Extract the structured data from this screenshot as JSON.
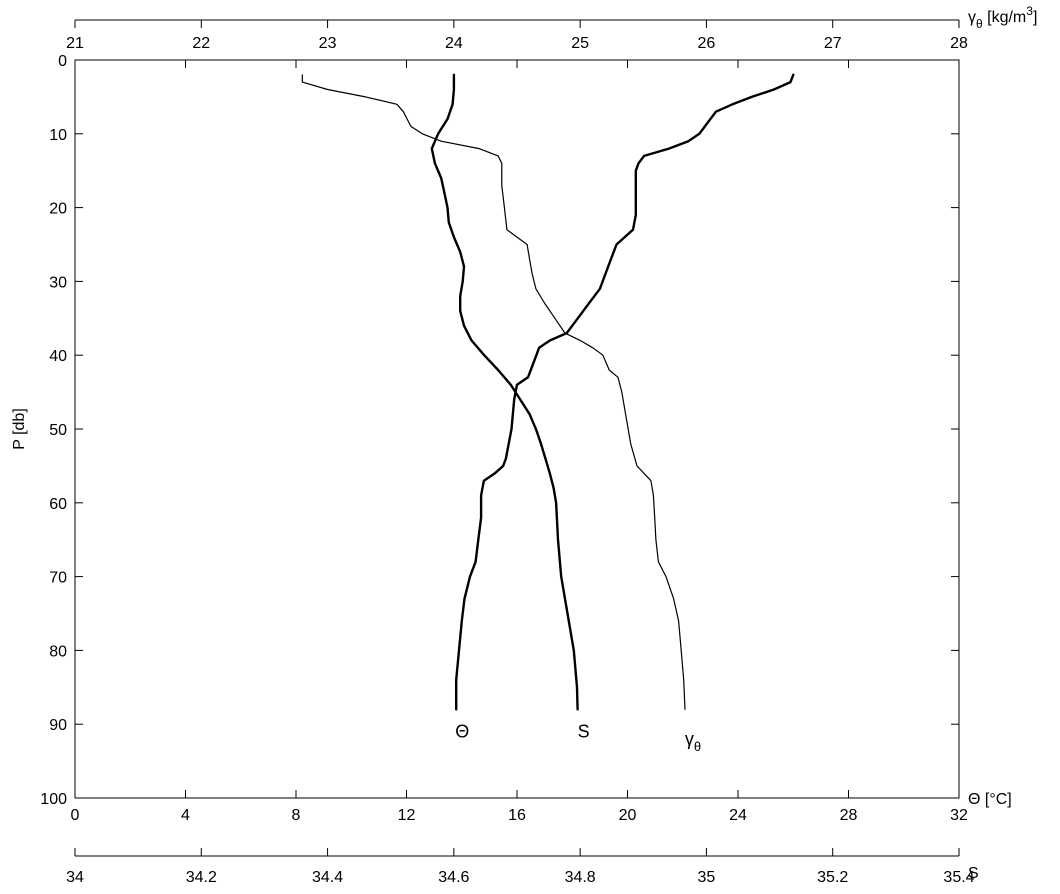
{
  "chart_data": {
    "type": "line",
    "title": "",
    "ylabel": "P [db]",
    "ylim": [
      0,
      100
    ],
    "y_inverted": true,
    "yticks": [
      0,
      10,
      20,
      30,
      40,
      50,
      60,
      70,
      80,
      90,
      100
    ],
    "axes": {
      "theta": {
        "label": "Θ [°C]",
        "range": [
          0,
          32
        ],
        "ticks": [
          0,
          4,
          8,
          12,
          16,
          20,
          24,
          28,
          32
        ],
        "position": "bottom"
      },
      "salinity": {
        "label": "S",
        "range": [
          34,
          35.4
        ],
        "ticks": [
          "34",
          "34.2",
          "34.4",
          "34.6",
          "34.8",
          "35",
          "35.2",
          "35.4"
        ],
        "position": "bottom-offset"
      },
      "gamma": {
        "label": "γθ [kg/m³]",
        "range": [
          21,
          28
        ],
        "ticks": [
          21,
          22,
          23,
          24,
          25,
          26,
          27,
          28
        ],
        "position": "top-offset"
      }
    },
    "series": [
      {
        "name": "Θ",
        "axis": "theta",
        "line_width": 2.4,
        "points": [
          [
            2,
            26.0
          ],
          [
            3,
            25.9
          ],
          [
            4,
            25.3
          ],
          [
            5,
            24.5
          ],
          [
            6,
            23.8
          ],
          [
            7,
            23.2
          ],
          [
            8,
            23.0
          ],
          [
            9,
            22.8
          ],
          [
            10,
            22.6
          ],
          [
            11,
            22.2
          ],
          [
            12,
            21.5
          ],
          [
            13,
            20.6
          ],
          [
            14,
            20.4
          ],
          [
            15,
            20.3
          ],
          [
            17,
            20.3
          ],
          [
            19,
            20.3
          ],
          [
            21,
            20.3
          ],
          [
            23,
            20.2
          ],
          [
            24,
            19.9
          ],
          [
            25,
            19.6
          ],
          [
            27,
            19.4
          ],
          [
            29,
            19.2
          ],
          [
            31,
            19.0
          ],
          [
            33,
            18.6
          ],
          [
            35,
            18.2
          ],
          [
            37,
            17.8
          ],
          [
            38,
            17.2
          ],
          [
            39,
            16.8
          ],
          [
            41,
            16.6
          ],
          [
            43,
            16.4
          ],
          [
            44,
            16.0
          ],
          [
            46,
            15.9
          ],
          [
            50,
            15.8
          ],
          [
            54,
            15.6
          ],
          [
            55,
            15.5
          ],
          [
            56,
            15.2
          ],
          [
            57,
            14.8
          ],
          [
            59,
            14.7
          ],
          [
            62,
            14.7
          ],
          [
            65,
            14.6
          ],
          [
            68,
            14.5
          ],
          [
            70,
            14.3
          ],
          [
            73,
            14.1
          ],
          [
            76,
            14.0
          ],
          [
            80,
            13.9
          ],
          [
            84,
            13.8
          ],
          [
            88,
            13.8
          ]
        ]
      },
      {
        "name": "S",
        "axis": "salinity",
        "line_width": 2.4,
        "points": [
          [
            2,
            34.6
          ],
          [
            4,
            34.6
          ],
          [
            6,
            34.598
          ],
          [
            8,
            34.59
          ],
          [
            10,
            34.575
          ],
          [
            12,
            34.565
          ],
          [
            14,
            34.57
          ],
          [
            16,
            34.58
          ],
          [
            18,
            34.585
          ],
          [
            20,
            34.59
          ],
          [
            22,
            34.592
          ],
          [
            24,
            34.6
          ],
          [
            26,
            34.61
          ],
          [
            28,
            34.616
          ],
          [
            30,
            34.614
          ],
          [
            32,
            34.61
          ],
          [
            34,
            34.61
          ],
          [
            36,
            34.616
          ],
          [
            38,
            34.628
          ],
          [
            40,
            34.648
          ],
          [
            42,
            34.67
          ],
          [
            44,
            34.69
          ],
          [
            46,
            34.705
          ],
          [
            48,
            34.72
          ],
          [
            50,
            34.73
          ],
          [
            52,
            34.738
          ],
          [
            54,
            34.745
          ],
          [
            56,
            34.752
          ],
          [
            58,
            34.758
          ],
          [
            60,
            34.762
          ],
          [
            65,
            34.765
          ],
          [
            70,
            34.77
          ],
          [
            75,
            34.78
          ],
          [
            80,
            34.79
          ],
          [
            85,
            34.795
          ],
          [
            88,
            34.796
          ]
        ]
      },
      {
        "name": "γθ",
        "axis": "gamma",
        "line_width": 1.2,
        "points": [
          [
            2,
            22.8
          ],
          [
            3,
            22.8
          ],
          [
            4,
            23.0
          ],
          [
            5,
            23.3
          ],
          [
            6,
            23.55
          ],
          [
            7,
            23.6
          ],
          [
            8,
            23.63
          ],
          [
            9,
            23.66
          ],
          [
            10,
            23.75
          ],
          [
            11,
            23.9
          ],
          [
            12,
            24.2
          ],
          [
            13,
            24.35
          ],
          [
            14,
            24.38
          ],
          [
            17,
            24.38
          ],
          [
            20,
            24.4
          ],
          [
            23,
            24.42
          ],
          [
            24,
            24.5
          ],
          [
            25,
            24.58
          ],
          [
            27,
            24.6
          ],
          [
            29,
            24.62
          ],
          [
            31,
            24.65
          ],
          [
            33,
            24.72
          ],
          [
            35,
            24.8
          ],
          [
            37,
            24.88
          ],
          [
            38,
            25.0
          ],
          [
            39,
            25.1
          ],
          [
            40,
            25.18
          ],
          [
            42,
            25.23
          ],
          [
            43,
            25.3
          ],
          [
            45,
            25.33
          ],
          [
            48,
            25.36
          ],
          [
            52,
            25.4
          ],
          [
            55,
            25.45
          ],
          [
            57,
            25.56
          ],
          [
            59,
            25.58
          ],
          [
            62,
            25.59
          ],
          [
            65,
            25.6
          ],
          [
            68,
            25.62
          ],
          [
            70,
            25.68
          ],
          [
            73,
            25.74
          ],
          [
            76,
            25.78
          ],
          [
            80,
            25.8
          ],
          [
            84,
            25.82
          ],
          [
            88,
            25.83
          ]
        ]
      }
    ],
    "annotations": [
      {
        "text": "Θ",
        "series": "Θ",
        "p": 91
      },
      {
        "text": "S",
        "series": "S",
        "p": 91
      },
      {
        "text": "γ",
        "sub": "θ",
        "series": "γθ",
        "p": 92
      }
    ]
  }
}
